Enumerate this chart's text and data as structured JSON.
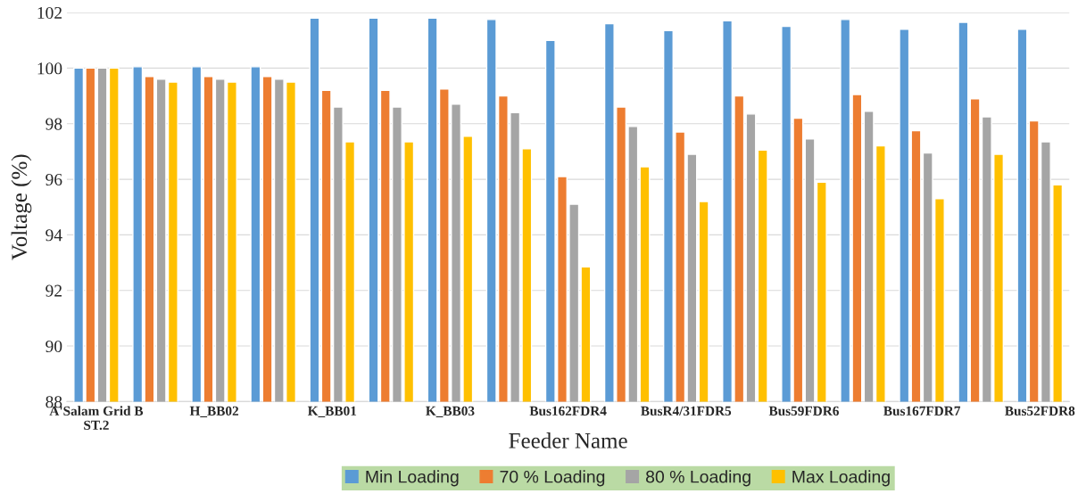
{
  "chart_data": {
    "type": "bar",
    "xlabel": "Feeder Name",
    "ylabel": "Voltage (%)",
    "categories": [
      "A'Salam Grid B\nST.2",
      null,
      "H_BB02",
      null,
      "K_BB01",
      null,
      "K_BB03",
      null,
      "Bus162FDR4",
      null,
      "BusR4/31FDR5",
      null,
      "Bus59FDR6",
      null,
      "Bus167FDR7",
      null,
      "Bus52FDR8"
    ],
    "series": [
      {
        "name": "Min Loading",
        "color": "#5b9bd5",
        "values": [
          100.0,
          100.05,
          100.05,
          100.05,
          101.8,
          101.8,
          101.8,
          101.75,
          101.0,
          101.6,
          101.35,
          101.7,
          101.5,
          101.75,
          101.4,
          101.65,
          101.4
        ]
      },
      {
        "name": "70 % Loading",
        "color": "#ed7d31",
        "values": [
          100.0,
          99.7,
          99.7,
          99.7,
          99.2,
          99.2,
          99.25,
          99.0,
          96.1,
          98.6,
          97.7,
          99.0,
          98.2,
          99.05,
          97.75,
          98.9,
          98.1
        ]
      },
      {
        "name": "80 % Loading",
        "color": "#a5a5a5",
        "values": [
          100.0,
          99.6,
          99.6,
          99.6,
          98.6,
          98.6,
          98.7,
          98.4,
          95.1,
          97.9,
          96.9,
          98.35,
          97.45,
          98.45,
          96.95,
          98.25,
          97.35
        ]
      },
      {
        "name": "Max Loading",
        "color": "#ffc000",
        "values": [
          100.0,
          99.5,
          99.5,
          99.5,
          97.35,
          97.35,
          97.55,
          97.1,
          92.85,
          96.45,
          95.2,
          97.05,
          95.9,
          97.2,
          95.3,
          96.9,
          95.8
        ]
      }
    ],
    "ylim": [
      88,
      102
    ],
    "yticks": [
      88,
      90,
      92,
      94,
      96,
      98,
      100,
      102
    ],
    "grid": "y",
    "legend": "bottom"
  }
}
